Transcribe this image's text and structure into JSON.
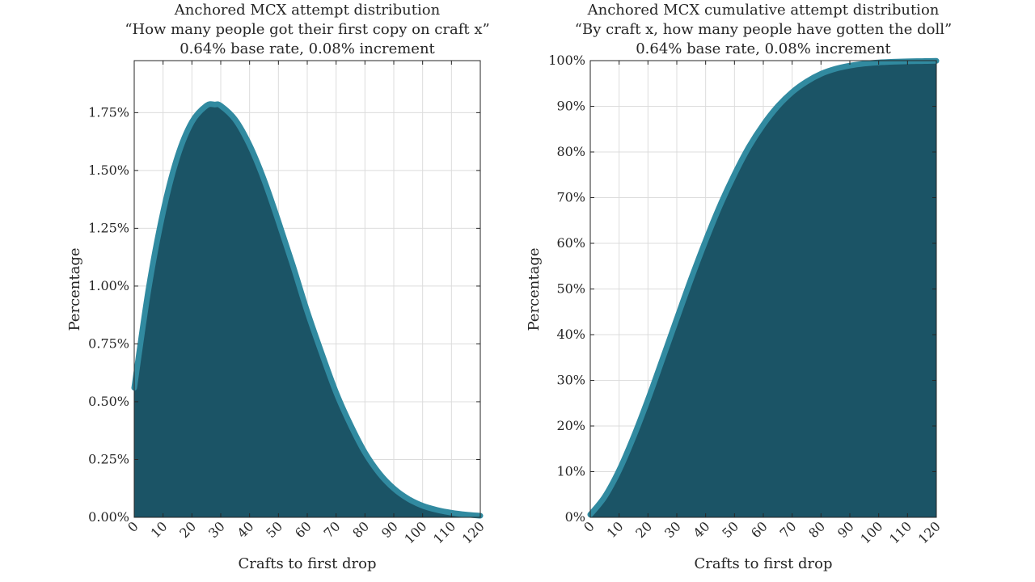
{
  "chart_data": [
    {
      "type": "area",
      "title_lines": [
        "Anchored MCX attempt distribution",
        "“How many people got their first copy on craft x”",
        "0.64% base rate, 0.08% increment"
      ],
      "xlabel": "Crafts to first drop",
      "ylabel": "Percentage",
      "xlim": [
        0,
        120
      ],
      "ylim": [
        0,
        1.975
      ],
      "x_ticks": [
        0,
        10,
        20,
        30,
        40,
        50,
        60,
        70,
        80,
        90,
        100,
        110,
        120
      ],
      "x_tick_labels": [
        "0",
        "10",
        "20",
        "30",
        "40",
        "50",
        "60",
        "70",
        "80",
        "90",
        "100",
        "110",
        "120"
      ],
      "y_ticks": [
        0,
        0.25,
        0.5,
        0.75,
        1.0,
        1.25,
        1.5,
        1.75
      ],
      "y_tick_labels": [
        "0.00%",
        "0.25%",
        "0.50%",
        "0.75%",
        "1.00%",
        "1.25%",
        "1.50%",
        "1.75%"
      ],
      "grid": true,
      "x": [
        0,
        5,
        10,
        15,
        20,
        25,
        28,
        30,
        35,
        40,
        45,
        50,
        55,
        60,
        65,
        70,
        75,
        80,
        85,
        90,
        95,
        100,
        105,
        110,
        115,
        120
      ],
      "values": [
        0.56,
        0.99,
        1.32,
        1.56,
        1.71,
        1.78,
        1.785,
        1.78,
        1.72,
        1.61,
        1.46,
        1.28,
        1.09,
        0.89,
        0.71,
        0.54,
        0.4,
        0.28,
        0.19,
        0.125,
        0.08,
        0.05,
        0.032,
        0.02,
        0.012,
        0.007
      ]
    },
    {
      "type": "area",
      "title_lines": [
        "Anchored MCX cumulative attempt distribution",
        "“By craft x, how many people have gotten the doll”",
        "0.64% base rate, 0.08% increment"
      ],
      "xlabel": "Crafts to first drop",
      "ylabel": "Percentage",
      "xlim": [
        0,
        120
      ],
      "ylim": [
        0,
        100
      ],
      "x_ticks": [
        0,
        10,
        20,
        30,
        40,
        50,
        60,
        70,
        80,
        90,
        100,
        110,
        120
      ],
      "x_tick_labels": [
        "0",
        "10",
        "20",
        "30",
        "40",
        "50",
        "60",
        "70",
        "80",
        "90",
        "100",
        "110",
        "120"
      ],
      "y_ticks": [
        0,
        10,
        20,
        30,
        40,
        50,
        60,
        70,
        80,
        90,
        100
      ],
      "y_tick_labels": [
        "0%",
        "10%",
        "20%",
        "30%",
        "40%",
        "50%",
        "60%",
        "70%",
        "80%",
        "90%",
        "100%"
      ],
      "grid": true,
      "x": [
        0,
        5,
        10,
        15,
        20,
        25,
        30,
        35,
        40,
        45,
        50,
        55,
        60,
        65,
        70,
        75,
        80,
        85,
        90,
        95,
        100,
        105,
        110,
        115,
        120
      ],
      "values": [
        0.6,
        4.5,
        10.3,
        17.6,
        25.8,
        34.6,
        43.5,
        52.3,
        60.6,
        68.3,
        75.1,
        81.1,
        86.0,
        90.0,
        93.1,
        95.4,
        97.1,
        98.2,
        98.9,
        99.35,
        99.6,
        99.75,
        99.85,
        99.9,
        99.95
      ]
    }
  ]
}
